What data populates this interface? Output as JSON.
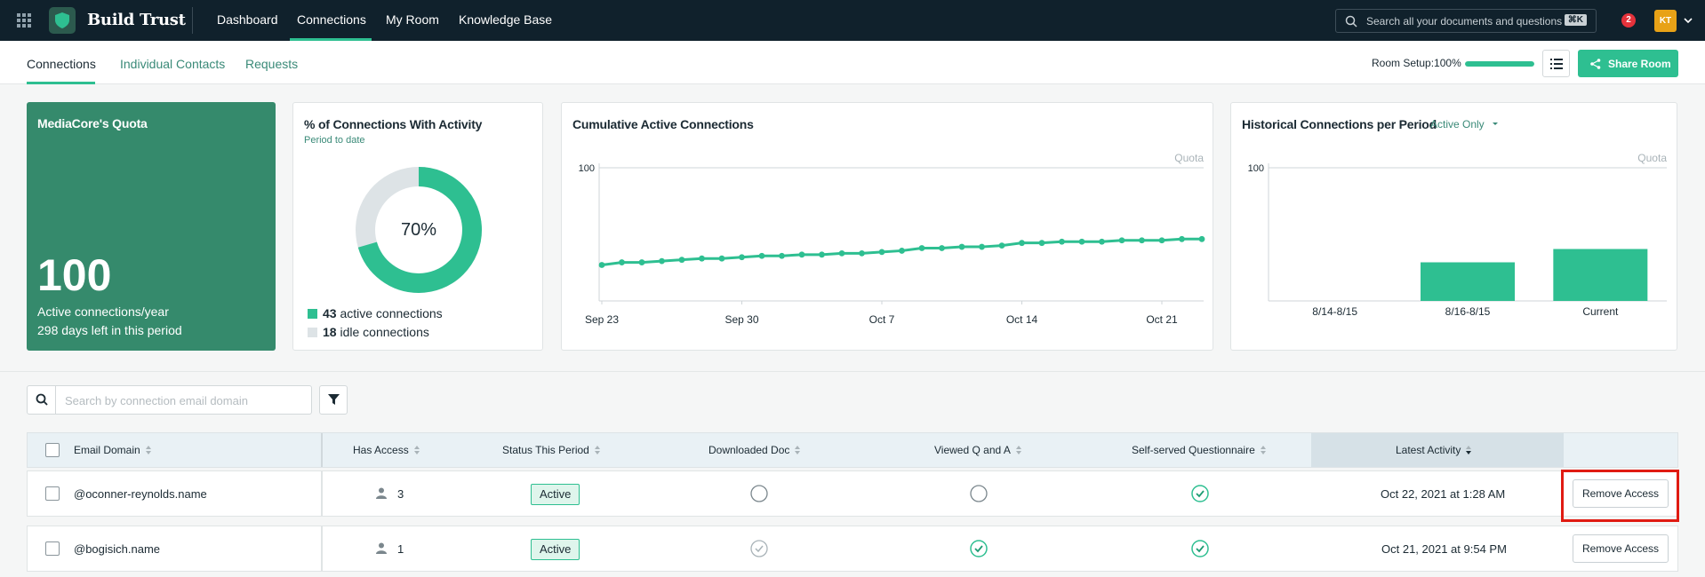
{
  "topnav": {
    "brand": "Build Trust",
    "items": [
      "Dashboard",
      "Connections",
      "My Room",
      "Knowledge Base"
    ],
    "active_item": "Connections",
    "search_placeholder": "Search all your documents and questions",
    "search_shortcut": "⌘K",
    "notifications": "2",
    "avatar_initials": "KT",
    "icons": [
      "grid-icon",
      "shield-logo-icon",
      "search-icon",
      "chevron-down-icon"
    ]
  },
  "subnav": {
    "tabs": [
      "Connections",
      "Individual Contacts",
      "Requests"
    ],
    "active_tab": "Connections",
    "room_setup_label": "Room Setup:",
    "room_setup_value": "100%",
    "room_setup_progress": 1.0,
    "share_label": "Share Room"
  },
  "cards": {
    "quota": {
      "title": "MediaCore's Quota",
      "value": "100",
      "line1": "Active connections/year",
      "line2": "298 days left in this period",
      "color": "#358a6c"
    },
    "activity": {
      "title": "% of Connections With Activity",
      "subtitle": "Period to date",
      "percent_label": "70%",
      "active_count": "43",
      "active_label": "active connections",
      "idle_count": "18",
      "idle_label": "idle connections"
    },
    "cumulative": {
      "title": "Cumulative Active Connections"
    },
    "historical": {
      "title": "Historical Connections per Period",
      "filter": "Active Only"
    }
  },
  "chart_data": [
    {
      "type": "pie",
      "title": "% of Connections With Activity",
      "categories": [
        "active connections",
        "idle connections"
      ],
      "values": [
        43,
        18
      ],
      "colors": [
        "#2ebf91",
        "#dde3e6"
      ]
    },
    {
      "type": "line",
      "title": "Cumulative Active Connections",
      "x_ticks": [
        "Sep 23",
        "Sep 30",
        "Oct 7",
        "Oct 14",
        "Oct 21"
      ],
      "y_ticks": [
        "100"
      ],
      "reference_line": {
        "label": "Quota",
        "value": 100
      },
      "ylim": [
        0,
        100
      ],
      "series": [
        {
          "values": [
            25,
            27,
            27,
            28,
            29,
            30,
            30,
            31,
            32,
            32,
            33,
            33,
            34,
            34,
            35,
            36,
            38,
            38,
            39,
            39,
            40,
            42,
            42,
            43,
            43,
            43,
            44,
            44,
            44,
            45,
            45
          ]
        }
      ],
      "color": "#2ebf91"
    },
    {
      "type": "bar",
      "title": "Historical Connections per Period",
      "categories": [
        "8/14-8/15",
        "8/16-8/15",
        "Current"
      ],
      "values": [
        0,
        29,
        39
      ],
      "y_ticks": [
        "100"
      ],
      "reference_line": {
        "label": "Quota",
        "value": 100
      },
      "ylim": [
        0,
        100
      ],
      "color": "#2ebf91"
    }
  ],
  "table": {
    "search_placeholder": "Search by connection email domain",
    "columns": [
      "Email Domain",
      "Has Access",
      "Status This Period",
      "Downloaded Doc",
      "Viewed Q and A",
      "Self-served Questionnaire",
      "Latest Activity"
    ],
    "sorted_column": "Latest Activity",
    "rows": [
      {
        "domain": "@oconner-reynolds.name",
        "access": "3",
        "status": "Active",
        "downloaded": "none",
        "viewed": "none",
        "questionnaire": "done",
        "latest": "Oct 22, 2021 at 1:28 AM",
        "action": "Remove Access"
      },
      {
        "domain": "@bogisich.name",
        "access": "1",
        "status": "Active",
        "downloaded": "partial",
        "viewed": "done",
        "questionnaire": "done",
        "latest": "Oct 21, 2021 at 9:54 PM",
        "action": "Remove Access"
      }
    ]
  }
}
